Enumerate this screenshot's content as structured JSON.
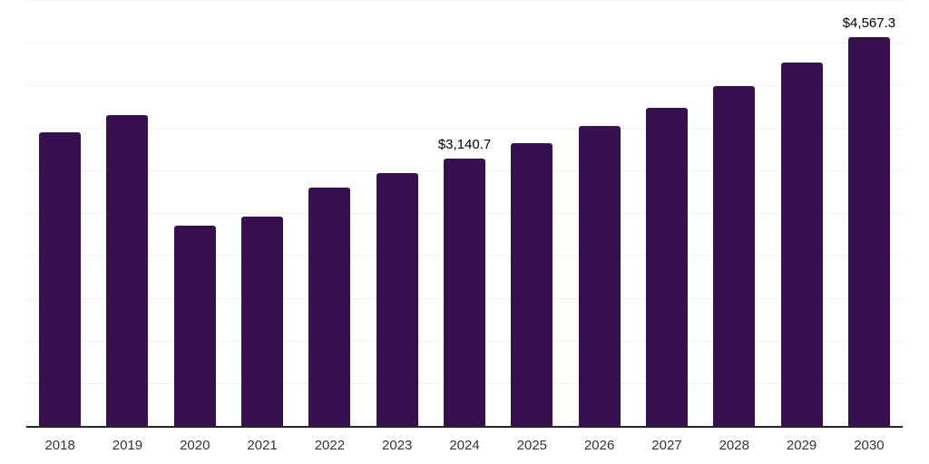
{
  "chart_data": {
    "type": "bar",
    "title": "",
    "xlabel": "",
    "ylabel": "",
    "categories": [
      "2018",
      "2019",
      "2020",
      "2021",
      "2022",
      "2023",
      "2024",
      "2025",
      "2026",
      "2027",
      "2028",
      "2029",
      "2030"
    ],
    "values": [
      3450,
      3645,
      2350,
      2455,
      2800,
      2965,
      3140.7,
      3315,
      3520,
      3735,
      3985,
      4265,
      4567.3
    ],
    "labeled_points": [
      {
        "category": "2024",
        "label": "$3,140.7"
      },
      {
        "category": "2030",
        "label": "$4,567.3"
      }
    ],
    "ylim": [
      0,
      5000
    ],
    "gridline_step": 500,
    "grid": true,
    "legend": false,
    "y_tick_labels_shown": false
  },
  "colors": {
    "bar": "#36104F",
    "gridline": "#F2F2F2",
    "axis_line": "#262626",
    "tick_label": "#333333",
    "value_label": "#000000",
    "background": "#FFFFFF"
  }
}
